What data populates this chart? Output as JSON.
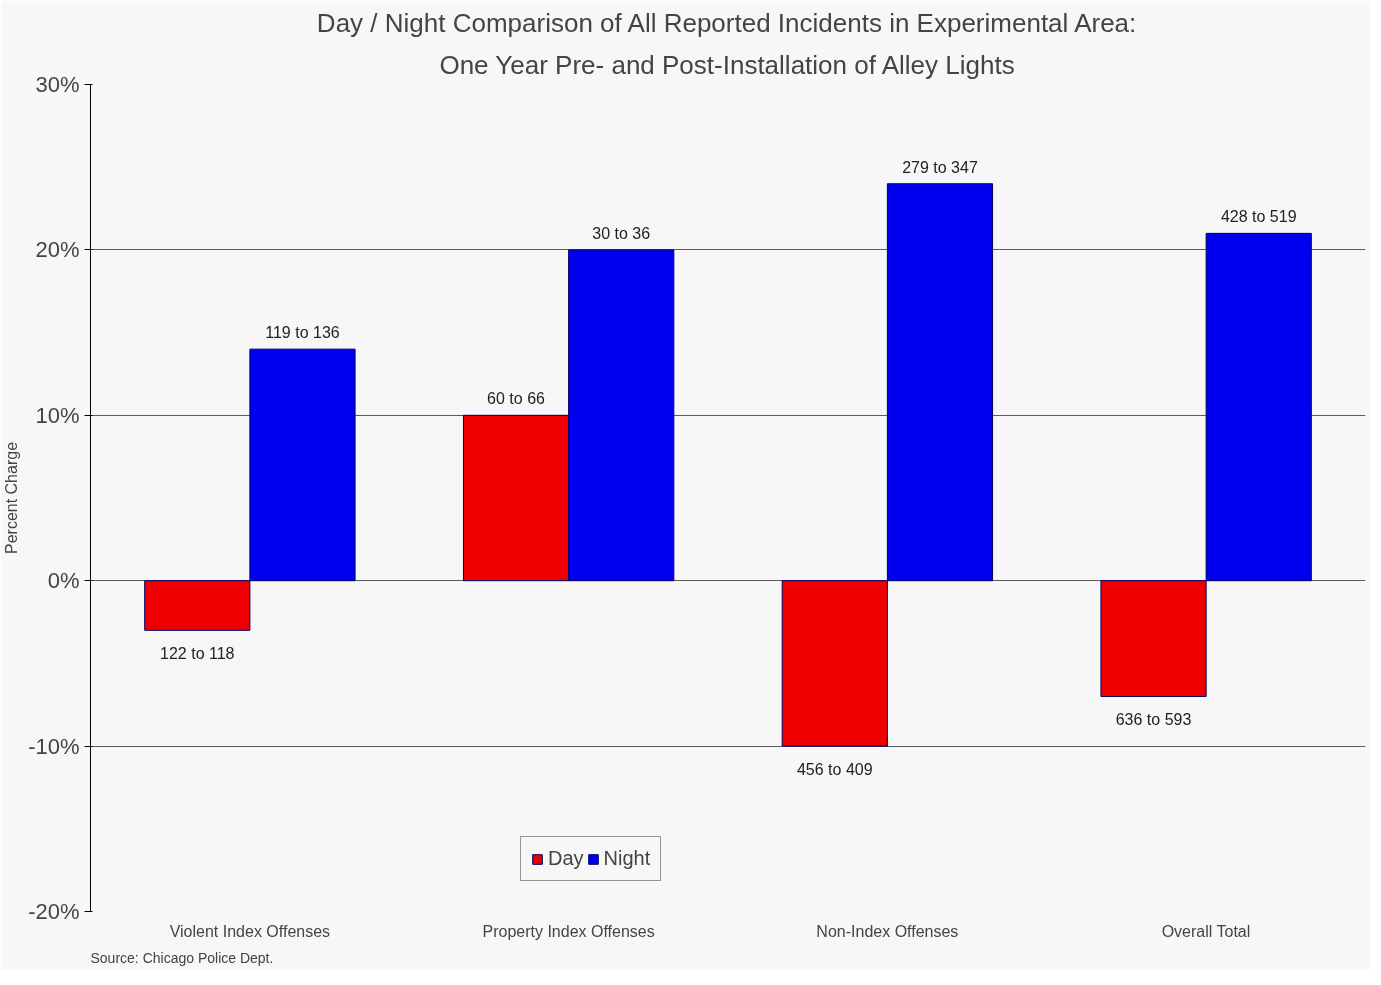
{
  "chart_data": {
    "type": "bar",
    "title": "Day / Night Comparison of All Reported Incidents in Experimental Area:",
    "subtitle": "One Year Pre- and Post-Installation of Alley Lights",
    "ylabel": "Percent Charge",
    "categories": [
      "Violent Index Offenses",
      "Property Index Offenses",
      "Non-Index Offenses",
      "Overall Total"
    ],
    "series": [
      {
        "name": "Day",
        "color": "#ee0000",
        "values": [
          -3,
          10,
          -10,
          -7
        ]
      },
      {
        "name": "Night",
        "color": "#0000ee",
        "values": [
          14,
          20,
          24,
          21
        ]
      }
    ],
    "ylim": [
      -20,
      30
    ],
    "yticks": [
      {
        "value": -20,
        "label": "-20%"
      },
      {
        "value": -10,
        "label": "-10%"
      },
      {
        "value": 0,
        "label": "0%"
      },
      {
        "value": 10,
        "label": "10%"
      },
      {
        "value": 20,
        "label": "20%"
      },
      {
        "value": 30,
        "label": "30%"
      }
    ],
    "grid": "y",
    "legend": "bottom",
    "annotations": [
      {
        "text": "122 to 118",
        "x": "Violent Index Offenses",
        "y": -3
      },
      {
        "text": "60 to 66",
        "x": "Property Index Offenses",
        "y": 10
      },
      {
        "text": "456 to 409",
        "x": "Non-Index Offenses",
        "y": -10
      },
      {
        "text": "636 to 593",
        "x": "Overall Total",
        "y": -7
      },
      {
        "text": "119 to 136",
        "x": "Violent Index Offenses",
        "y": 14
      },
      {
        "text": "30 to 36",
        "x": "Property Index Offenses",
        "y": 20
      },
      {
        "text": "279 to 347",
        "x": "Non-Index Offenses",
        "y": 24
      },
      {
        "text": "428 to 519",
        "x": "Overall Total",
        "y": 21
      },
      "Source: Chicago Police Dept."
    ]
  }
}
